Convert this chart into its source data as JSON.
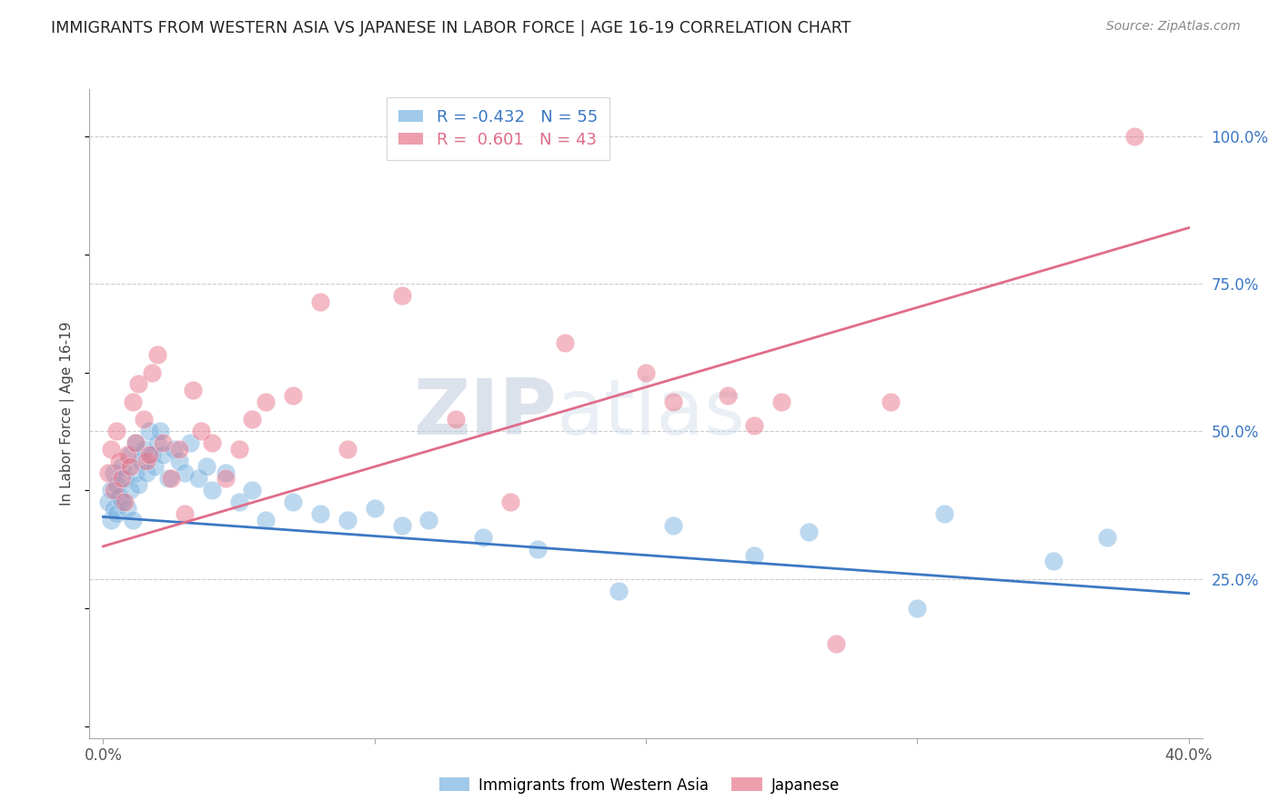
{
  "title": "IMMIGRANTS FROM WESTERN ASIA VS JAPANESE IN LABOR FORCE | AGE 16-19 CORRELATION CHART",
  "source": "Source: ZipAtlas.com",
  "ylabel": "In Labor Force | Age 16-19",
  "xlim": [
    -0.005,
    0.405
  ],
  "ylim": [
    -0.02,
    1.08
  ],
  "xticks": [
    0.0,
    0.1,
    0.2,
    0.3,
    0.4
  ],
  "xticklabels": [
    "0.0%",
    "",
    "",
    "",
    "40.0%"
  ],
  "yticks_right": [
    0.25,
    0.5,
    0.75,
    1.0
  ],
  "yticklabels_right": [
    "25.0%",
    "50.0%",
    "75.0%",
    "100.0%"
  ],
  "blue_color": "#7ab3e0",
  "pink_color": "#e8758a",
  "blue_R": -0.432,
  "blue_N": 55,
  "pink_R": 0.601,
  "pink_N": 43,
  "legend_label_blue": "Immigrants from Western Asia",
  "legend_label_pink": "Japanese",
  "watermark_zip": "ZIP",
  "watermark_atlas": "atlas",
  "blue_scatter_x": [
    0.002,
    0.003,
    0.003,
    0.004,
    0.004,
    0.005,
    0.005,
    0.006,
    0.007,
    0.007,
    0.008,
    0.009,
    0.01,
    0.01,
    0.011,
    0.012,
    0.012,
    0.013,
    0.014,
    0.015,
    0.016,
    0.017,
    0.018,
    0.019,
    0.02,
    0.021,
    0.022,
    0.024,
    0.026,
    0.028,
    0.03,
    0.032,
    0.035,
    0.038,
    0.04,
    0.045,
    0.05,
    0.055,
    0.06,
    0.07,
    0.08,
    0.09,
    0.1,
    0.11,
    0.12,
    0.14,
    0.16,
    0.19,
    0.21,
    0.24,
    0.26,
    0.3,
    0.31,
    0.35,
    0.37
  ],
  "blue_scatter_y": [
    0.38,
    0.4,
    0.35,
    0.43,
    0.37,
    0.36,
    0.41,
    0.39,
    0.44,
    0.38,
    0.42,
    0.37,
    0.4,
    0.46,
    0.35,
    0.43,
    0.48,
    0.41,
    0.45,
    0.47,
    0.43,
    0.5,
    0.46,
    0.44,
    0.48,
    0.5,
    0.46,
    0.42,
    0.47,
    0.45,
    0.43,
    0.48,
    0.42,
    0.44,
    0.4,
    0.43,
    0.38,
    0.4,
    0.35,
    0.38,
    0.36,
    0.35,
    0.37,
    0.34,
    0.35,
    0.32,
    0.3,
    0.23,
    0.34,
    0.29,
    0.33,
    0.2,
    0.36,
    0.28,
    0.32
  ],
  "pink_scatter_x": [
    0.002,
    0.003,
    0.004,
    0.005,
    0.006,
    0.007,
    0.008,
    0.009,
    0.01,
    0.011,
    0.012,
    0.013,
    0.015,
    0.016,
    0.017,
    0.018,
    0.02,
    0.022,
    0.025,
    0.028,
    0.03,
    0.033,
    0.036,
    0.04,
    0.045,
    0.05,
    0.055,
    0.06,
    0.07,
    0.08,
    0.09,
    0.11,
    0.13,
    0.15,
    0.17,
    0.2,
    0.21,
    0.23,
    0.24,
    0.25,
    0.27,
    0.29,
    0.38
  ],
  "pink_scatter_y": [
    0.43,
    0.47,
    0.4,
    0.5,
    0.45,
    0.42,
    0.38,
    0.46,
    0.44,
    0.55,
    0.48,
    0.58,
    0.52,
    0.45,
    0.46,
    0.6,
    0.63,
    0.48,
    0.42,
    0.47,
    0.36,
    0.57,
    0.5,
    0.48,
    0.42,
    0.47,
    0.52,
    0.55,
    0.56,
    0.72,
    0.47,
    0.73,
    0.52,
    0.38,
    0.65,
    0.6,
    0.55,
    0.56,
    0.51,
    0.55,
    0.14,
    0.55,
    1.0
  ],
  "blue_line_x": [
    0.0,
    0.4
  ],
  "blue_line_y": [
    0.355,
    0.225
  ],
  "pink_line_x": [
    0.0,
    0.4
  ],
  "pink_line_y": [
    0.305,
    0.845
  ],
  "grid_color": "#cccccc",
  "spine_color": "#aaaaaa",
  "title_color": "#222222",
  "source_color": "#888888",
  "tick_color": "#3b78c4",
  "ylabel_color": "#444444"
}
